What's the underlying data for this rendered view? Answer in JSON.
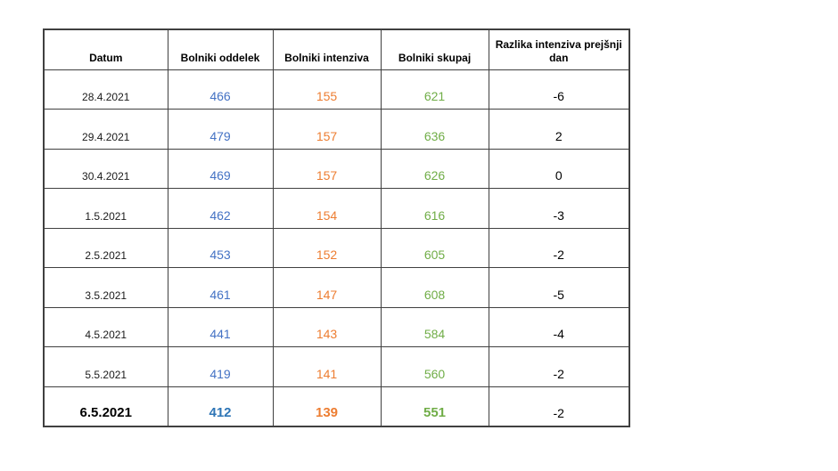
{
  "colors": {
    "oddelek": "#4472C4",
    "oddelek_bold": "#2E75B6",
    "intenziva": "#ED7D31",
    "skupaj": "#70AD47",
    "border": "#404040"
  },
  "table": {
    "headers": {
      "datum": "Datum",
      "oddelek": "Bolniki oddelek",
      "intenziva": "Bolniki intenziva",
      "skupaj": "Bolniki skupaj",
      "razlika": "Razlika intenziva prejšnji dan"
    },
    "rows": [
      {
        "datum": "28.4.2021",
        "oddelek": "466",
        "intenziva": "155",
        "skupaj": "621",
        "razlika": "-6",
        "bold": false
      },
      {
        "datum": "29.4.2021",
        "oddelek": "479",
        "intenziva": "157",
        "skupaj": "636",
        "razlika": "2",
        "bold": false
      },
      {
        "datum": "30.4.2021",
        "oddelek": "469",
        "intenziva": "157",
        "skupaj": "626",
        "razlika": "0",
        "bold": false
      },
      {
        "datum": "1.5.2021",
        "oddelek": "462",
        "intenziva": "154",
        "skupaj": "616",
        "razlika": "-3",
        "bold": false
      },
      {
        "datum": "2.5.2021",
        "oddelek": "453",
        "intenziva": "152",
        "skupaj": "605",
        "razlika": "-2",
        "bold": false
      },
      {
        "datum": "3.5.2021",
        "oddelek": "461",
        "intenziva": "147",
        "skupaj": "608",
        "razlika": "-5",
        "bold": false
      },
      {
        "datum": "4.5.2021",
        "oddelek": "441",
        "intenziva": "143",
        "skupaj": "584",
        "razlika": "-4",
        "bold": false
      },
      {
        "datum": "5.5.2021",
        "oddelek": "419",
        "intenziva": "141",
        "skupaj": "560",
        "razlika": "-2",
        "bold": false
      },
      {
        "datum": "6.5.2021",
        "oddelek": "412",
        "intenziva": "139",
        "skupaj": "551",
        "razlika": "-2",
        "bold": true
      }
    ]
  }
}
